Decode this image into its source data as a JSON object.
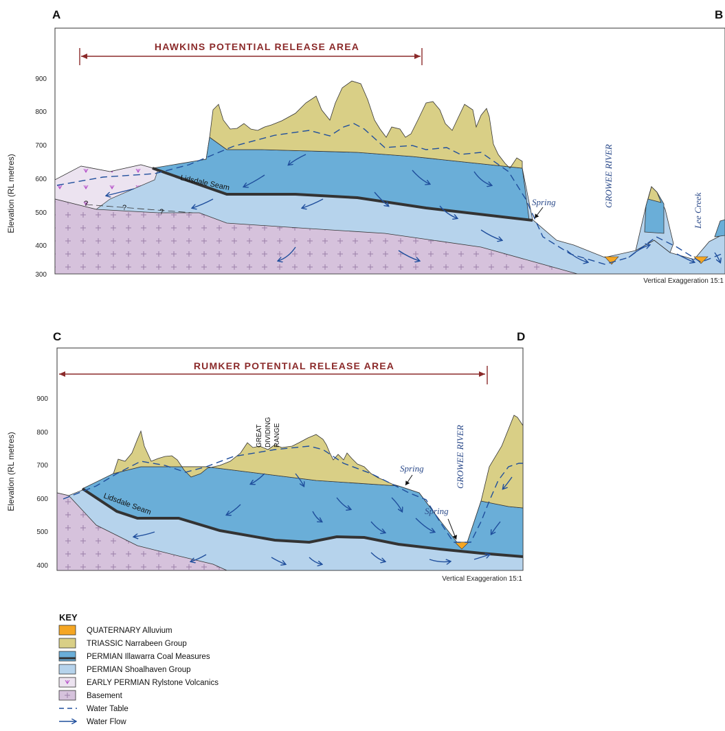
{
  "section_ab": {
    "left_label": "A",
    "right_label": "B",
    "y_axis_label": "Elevation (RL metres)",
    "y_ticks": [
      "900",
      "800",
      "700",
      "600",
      "500",
      "400",
      "300"
    ],
    "release_area": "HAWKINS POTENTIAL RELEASE AREA",
    "seam_label": "Lidsdale Seam",
    "spring_label": "Spring",
    "river_label": "GROWEE RIVER",
    "creek_label": "Lee Creek",
    "unknown_mark": "?",
    "exaggeration": "Vertical Exaggeration 15:1"
  },
  "section_cd": {
    "left_label": "C",
    "right_label": "D",
    "y_axis_label": "Elevation (RL metres)",
    "y_ticks": [
      "900",
      "800",
      "700",
      "600",
      "500",
      "400"
    ],
    "release_area": "RUMKER POTENTIAL RELEASE AREA",
    "range_label_1": "GREAT",
    "range_label_2": "DIVIDING",
    "range_label_3": "RANGE",
    "seam_label": "Lidsdale Seam",
    "spring_label_1": "Spring",
    "spring_label_2": "Spring",
    "river_label": "GROWEE RIVER",
    "exaggeration": "Vertical Exaggeration 15:1"
  },
  "colors": {
    "alluvium": "#f5a623",
    "narrabeen": "#d9cf86",
    "illawarra": "#6aaed8",
    "shoalhaven": "#b6d3ec",
    "rylstone": "#ece3f0",
    "basement": "#d6c2dc",
    "water": "#1f4e9c",
    "title": "#8b2a2a"
  },
  "key": {
    "title": "KEY",
    "items": [
      {
        "label": "QUATERNARY Alluvium"
      },
      {
        "label": "TRIASSIC Narrabeen Group"
      },
      {
        "label": "PERMIAN Illawarra Coal Measures"
      },
      {
        "label": "PERMIAN Shoalhaven Group"
      },
      {
        "label": "EARLY PERMIAN Rylstone Volcanics"
      },
      {
        "label": "Basement"
      },
      {
        "label": "Water Table"
      },
      {
        "label": "Water Flow"
      }
    ]
  }
}
